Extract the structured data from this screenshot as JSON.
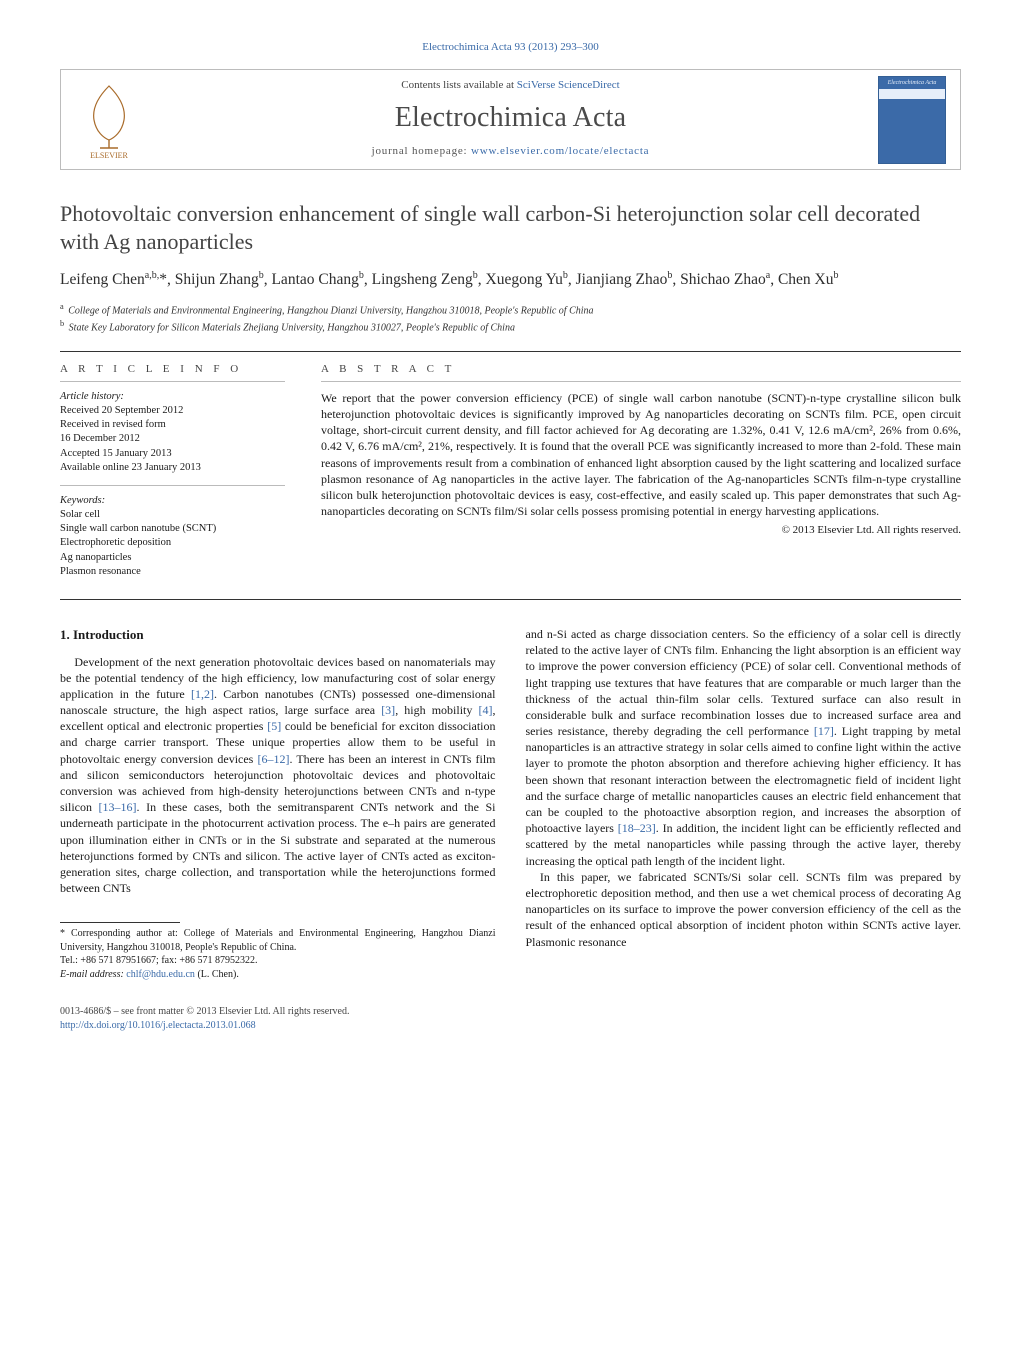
{
  "colors": {
    "link": "#3a6aa8",
    "text": "#1a1a1a",
    "rule": "#333333",
    "background": "#ffffff",
    "cover_bg": "#3b6aa8",
    "cover_stripe": "#e6eefa"
  },
  "typography": {
    "body_font": "Times New Roman, Charis, serif",
    "body_size_pt": 9,
    "title_size_pt": 17,
    "journal_size_pt": 21,
    "authors_size_pt": 12,
    "small_size_pt": 8
  },
  "running_head": "Electrochimica Acta 93 (2013) 293–300",
  "header": {
    "contents_line_prefix": "Contents lists available at ",
    "contents_line_link": "SciVerse ScienceDirect",
    "journal": "Electrochimica Acta",
    "homepage_prefix": "journal homepage: ",
    "homepage_url": "www.elsevier.com/locate/electacta",
    "publisher_logo_label": "ELSEVIER",
    "cover_label": "Electrochimica Acta"
  },
  "article": {
    "title": "Photovoltaic conversion enhancement of single wall carbon-Si heterojunction solar cell decorated with Ag nanoparticles",
    "authors_html": "Leifeng Chen<sup>a,b,</sup>*, Shijun Zhang<sup>b</sup>, Lantao Chang<sup>b</sup>, Lingsheng Zeng<sup>b</sup>, Xuegong Yu<sup>b</sup>, Jianjiang Zhao<sup>b</sup>, Shichao Zhao<sup>a</sup>, Chen Xu<sup>b</sup>",
    "affiliations": [
      {
        "key": "a",
        "text": "College of Materials and Environmental Engineering, Hangzhou Dianzi University, Hangzhou 310018, People's Republic of China"
      },
      {
        "key": "b",
        "text": "State Key Laboratory for Silicon Materials Zhejiang University, Hangzhou 310027, People's Republic of China"
      }
    ]
  },
  "article_info": {
    "heading": "A R T I C L E   I N F O",
    "history_label": "Article history:",
    "history": [
      "Received 20 September 2012",
      "Received in revised form",
      "16 December 2012",
      "Accepted 15 January 2013",
      "Available online 23 January 2013"
    ],
    "keywords_label": "Keywords:",
    "keywords": [
      "Solar cell",
      "Single wall carbon nanotube (SCNT)",
      "Electrophoretic deposition",
      "Ag nanoparticles",
      "Plasmon resonance"
    ]
  },
  "abstract": {
    "heading": "A B S T R A C T",
    "text": "We report that the power conversion efficiency (PCE) of single wall carbon nanotube (SCNT)-n-type crystalline silicon bulk heterojunction photovoltaic devices is significantly improved by Ag nanoparticles decorating on SCNTs film. PCE, open circuit voltage, short-circuit current density, and fill factor achieved for Ag decorating are 1.32%, 0.41 V, 12.6 mA/cm², 26% from 0.6%, 0.42 V, 6.76 mA/cm², 21%, respectively. It is found that the overall PCE was significantly increased to more than 2-fold. These main reasons of improvements result from a combination of enhanced light absorption caused by the light scattering and localized surface plasmon resonance of Ag nanoparticles in the active layer. The fabrication of the Ag-nanoparticles SCNTs film-n-type crystalline silicon bulk heterojunction photovoltaic devices is easy, cost-effective, and easily scaled up. This paper demonstrates that such Ag-nanoparticles decorating on SCNTs film/Si solar cells possess promising potential in energy harvesting applications.",
    "copyright": "© 2013 Elsevier Ltd. All rights reserved."
  },
  "body": {
    "section_heading": "1.  Introduction",
    "col1": "Development of the next generation photovoltaic devices based on nanomaterials may be the potential tendency of the high efficiency, low manufacturing cost of solar energy application in the future [1,2]. Carbon nanotubes (CNTs) possessed one-dimensional nanoscale structure, the high aspect ratios, large surface area [3], high mobility [4], excellent optical and electronic properties [5] could be beneficial for exciton dissociation and charge carrier transport. These unique properties allow them to be useful in photovoltaic energy conversion devices [6–12]. There has been an interest in CNTs film and silicon semiconductors heterojunction photovoltaic devices and photovoltaic conversion was achieved from high-density heterojunctions between CNTs and n-type silicon [13–16]. In these cases, both the semitransparent CNTs network and the Si underneath participate in the photocurrent activation process. The e–h pairs are generated upon illumination either in CNTs or in the Si substrate and separated at the numerous heterojunctions formed by CNTs and silicon. The active layer of CNTs acted as exciton-generation sites, charge collection, and transportation while the heterojunctions formed between CNTs",
    "col2_p1": "and n-Si acted as charge dissociation centers. So the efficiency of a solar cell is directly related to the active layer of CNTs film. Enhancing the light absorption is an efficient way to improve the power conversion efficiency (PCE) of solar cell. Conventional methods of light trapping use textures that have features that are comparable or much larger than the thickness of the actual thin-film solar cells. Textured surface can also result in considerable bulk and surface recombination losses due to increased surface area and series resistance, thereby degrading the cell performance [17]. Light trapping by metal nanoparticles is an attractive strategy in solar cells aimed to confine light within the active layer to promote the photon absorption and therefore achieving higher efficiency. It has been shown that resonant interaction between the electromagnetic field of incident light and the surface charge of metallic nanoparticles causes an electric field enhancement that can be coupled to the photoactive absorption region, and increases the absorption of photoactive layers [18–23]. In addition, the incident light can be efficiently reflected and scattered by the metal nanoparticles while passing through the active layer, thereby increasing the optical path length of the incident light.",
    "col2_p2": "In this paper, we fabricated SCNTs/Si solar cell. SCNTs film was prepared by electrophoretic deposition method, and then use a wet chemical process of decorating Ag nanoparticles on its surface to improve the power conversion efficiency of the cell as the result of the enhanced optical absorption of incident photon within SCNTs active layer. Plasmonic resonance"
  },
  "footnotes": {
    "corresponding": "* Corresponding author at: College of Materials and Environmental Engineering, Hangzhou Dianzi University, Hangzhou 310018, People's Republic of China.",
    "tel": "Tel.: +86 571 87951667; fax: +86 571 87952322.",
    "email_label": "E-mail address: ",
    "email": "chlf@hdu.edu.cn",
    "email_author": " (L. Chen)."
  },
  "footer": {
    "issn_line": "0013-4686/$ – see front matter © 2013 Elsevier Ltd. All rights reserved.",
    "doi": "http://dx.doi.org/10.1016/j.electacta.2013.01.068"
  }
}
